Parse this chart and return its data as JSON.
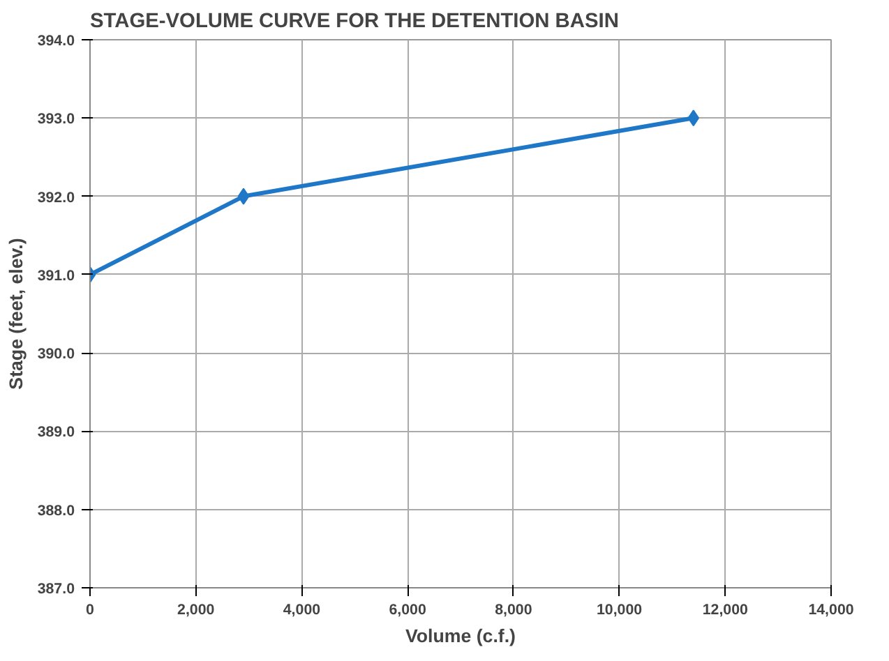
{
  "chart_data": {
    "type": "line",
    "title": "STAGE-VOLUME CURVE FOR THE DETENTION BASIN",
    "xlabel": "Volume (c.f.)",
    "ylabel": "Stage (feet, elev.)",
    "x": [
      0,
      2900,
      11400
    ],
    "series": [
      {
        "color": "#1f77c8",
        "values": [
          391.0,
          392.0,
          393.0
        ]
      }
    ],
    "xlim": [
      0,
      14000
    ],
    "ylim": [
      387,
      394
    ],
    "xticks": [
      {
        "value": 0,
        "label": "0"
      },
      {
        "value": 2000,
        "label": "2,000"
      },
      {
        "value": 4000,
        "label": "4,000"
      },
      {
        "value": 6000,
        "label": "6,000"
      },
      {
        "value": 8000,
        "label": "8,000"
      },
      {
        "value": 10000,
        "label": "10,000"
      },
      {
        "value": 12000,
        "label": "12,000"
      },
      {
        "value": 14000,
        "label": "14,000"
      }
    ],
    "yticks": [
      {
        "value": 387,
        "label": "387.0"
      },
      {
        "value": 388,
        "label": "388.0"
      },
      {
        "value": 389,
        "label": "389.0"
      },
      {
        "value": 390,
        "label": "390.0"
      },
      {
        "value": 391,
        "label": "391.0"
      },
      {
        "value": 392,
        "label": "392.0"
      },
      {
        "value": 393,
        "label": "393.0"
      },
      {
        "value": 394,
        "label": "394.0"
      }
    ],
    "grid": true,
    "marker": "diamond",
    "line_style": "solid"
  }
}
